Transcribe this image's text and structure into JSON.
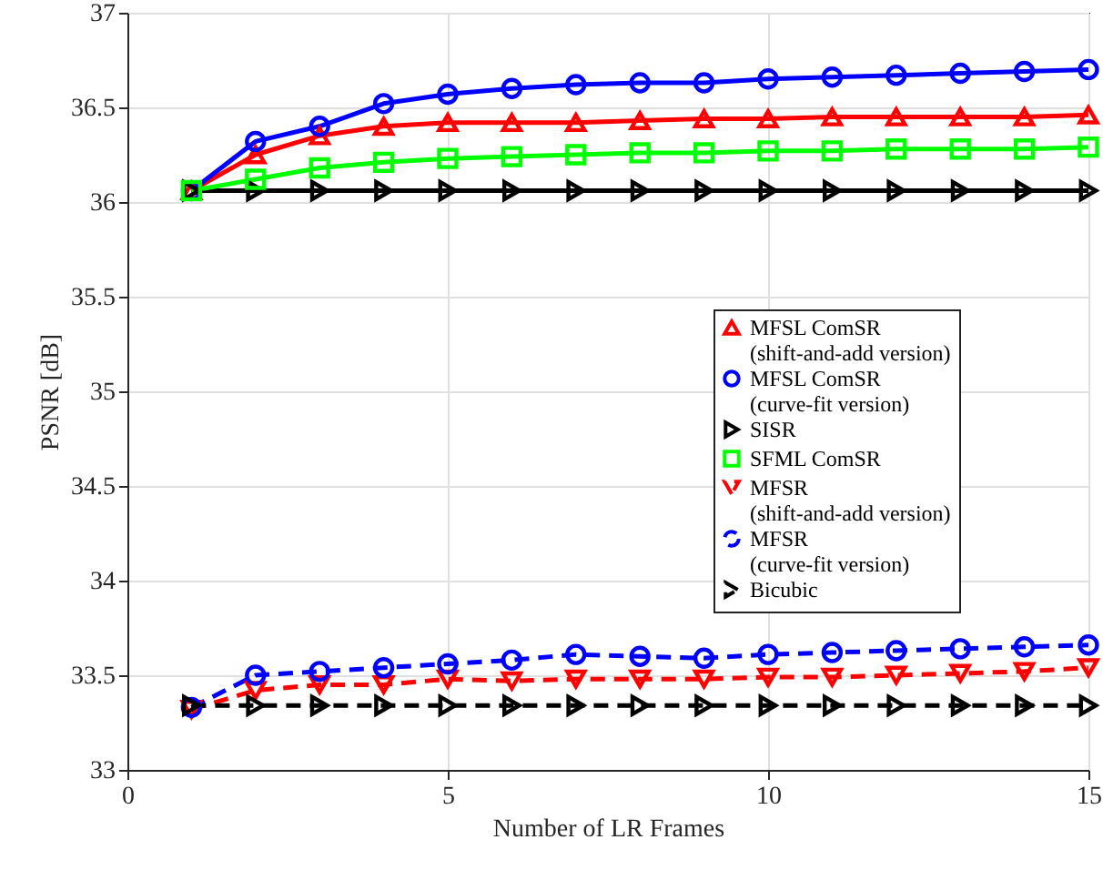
{
  "chart_data": {
    "type": "line",
    "xlabel": "Number of LR Frames",
    "ylabel": "PSNR [dB]",
    "x": [
      1,
      2,
      3,
      4,
      5,
      6,
      7,
      8,
      9,
      10,
      11,
      12,
      13,
      14,
      15
    ],
    "xlim": [
      0,
      15
    ],
    "xticks": [
      0,
      5,
      10,
      15
    ],
    "ylim": [
      33,
      37
    ],
    "yticks": [
      33,
      33.5,
      34,
      34.5,
      35,
      35.5,
      36,
      36.5,
      37
    ],
    "grid": true,
    "legend": "right",
    "series": [
      {
        "name": "MFSL ComSR (shift-and-add version)",
        "color": "#ff0000",
        "marker": "triangle-up",
        "line_style": "solid",
        "values": [
          36.06,
          36.25,
          36.35,
          36.4,
          36.42,
          36.42,
          36.42,
          36.43,
          36.44,
          36.44,
          36.45,
          36.45,
          36.45,
          36.45,
          36.46
        ]
      },
      {
        "name": "MFSL ComSR (curve-fit version)",
        "color": "#0000ff",
        "marker": "circle",
        "line_style": "solid",
        "values": [
          36.06,
          36.32,
          36.4,
          36.52,
          36.57,
          36.6,
          36.62,
          36.63,
          36.63,
          36.65,
          36.66,
          36.67,
          36.68,
          36.69,
          36.7
        ]
      },
      {
        "name": "SISR",
        "color": "#000000",
        "marker": "triangle-right",
        "line_style": "solid",
        "values": [
          36.06,
          36.06,
          36.06,
          36.06,
          36.06,
          36.06,
          36.06,
          36.06,
          36.06,
          36.06,
          36.06,
          36.06,
          36.06,
          36.06,
          36.06
        ]
      },
      {
        "name": "SFML ComSR",
        "color": "#00ff00",
        "marker": "square",
        "line_style": "solid",
        "values": [
          36.06,
          36.12,
          36.18,
          36.21,
          36.23,
          36.24,
          36.25,
          36.26,
          36.26,
          36.27,
          36.27,
          36.28,
          36.28,
          36.28,
          36.29
        ]
      },
      {
        "name": "MFSR (shift-and-add version)",
        "color": "#ff0000",
        "marker": "triangle-down",
        "line_style": "dashed",
        "values": [
          33.32,
          33.42,
          33.45,
          33.45,
          33.48,
          33.47,
          33.48,
          33.48,
          33.48,
          33.49,
          33.49,
          33.5,
          33.51,
          33.52,
          33.54
        ]
      },
      {
        "name": "MFSR (curve-fit version)",
        "color": "#0000ff",
        "marker": "circle",
        "line_style": "dashed",
        "values": [
          33.33,
          33.5,
          33.52,
          33.54,
          33.56,
          33.58,
          33.61,
          33.6,
          33.59,
          33.61,
          33.62,
          33.63,
          33.64,
          33.65,
          33.66
        ]
      },
      {
        "name": "Bicubic",
        "color": "#000000",
        "marker": "triangle-right",
        "line_style": "dashed",
        "values": [
          33.34,
          33.34,
          33.34,
          33.34,
          33.34,
          33.34,
          33.34,
          33.34,
          33.34,
          33.34,
          33.34,
          33.34,
          33.34,
          33.34,
          33.34
        ]
      }
    ]
  }
}
